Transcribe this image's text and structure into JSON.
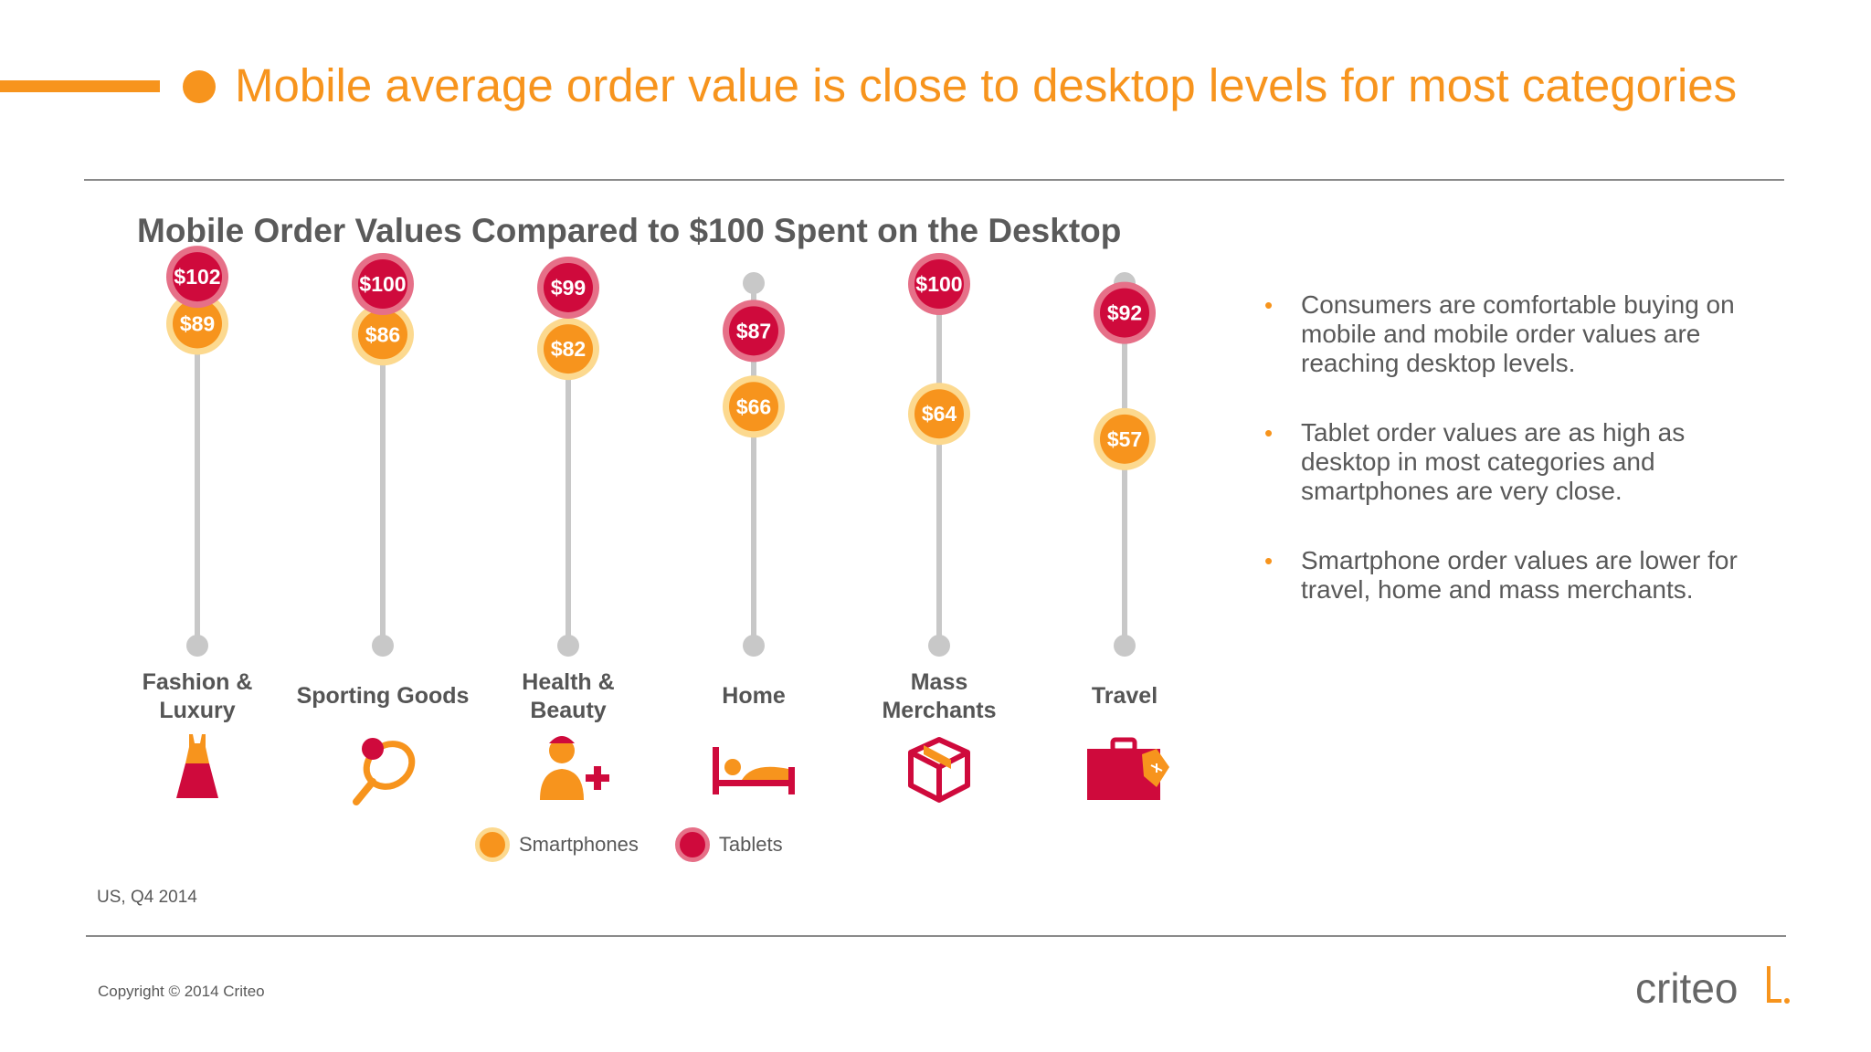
{
  "header": {
    "title": "Mobile average order value is close to desktop levels for most categories"
  },
  "chart_data": {
    "type": "dot-range",
    "title": "Mobile Order Values Compared to $100 Spent on the Desktop",
    "categories": [
      "Fashion & Luxury",
      "Sporting Goods",
      "Health & Beauty",
      "Home",
      "Mass Merchants",
      "Travel"
    ],
    "category_lines": [
      [
        "Fashion &",
        "Luxury"
      ],
      [
        "Sporting Goods"
      ],
      [
        "Health &",
        "Beauty"
      ],
      [
        "Home"
      ],
      [
        "Mass",
        "Merchants"
      ],
      [
        "Travel"
      ]
    ],
    "series": [
      {
        "name": "Smartphones",
        "color": "#f7941d",
        "values": [
          89,
          86,
          82,
          66,
          64,
          57
        ],
        "labels": [
          "$89",
          "$86",
          "$82",
          "$66",
          "$64",
          "$57"
        ]
      },
      {
        "name": "Tablets",
        "color": "#cf0a3c",
        "values": [
          102,
          100,
          99,
          87,
          100,
          92
        ],
        "labels": [
          "$102",
          "$100",
          "$99",
          "$87",
          "$100",
          "$92"
        ]
      }
    ],
    "icons": [
      "dress-icon",
      "racket-icon",
      "person-plus-icon",
      "bed-icon",
      "box-icon",
      "suitcase-icon"
    ]
  },
  "bullets": [
    "Consumers are comfortable buying on mobile and mobile order values are reaching desktop levels.",
    "Tablet order values are as high as desktop in most categories and smartphones are very close.",
    "Smartphone order values are lower for travel, home and mass merchants."
  ],
  "bullet_marker": "•",
  "legend": {
    "smartphones": "Smartphones",
    "tablets": "Tablets"
  },
  "footnote": "US, Q4 2014",
  "copyright": "Copyright © 2014 Criteo",
  "logo": {
    "text": "criteo"
  },
  "colors": {
    "accent": "#f7941d",
    "tablet": "#cf0a3c",
    "track": "#c8c8c8",
    "text": "#595959"
  }
}
